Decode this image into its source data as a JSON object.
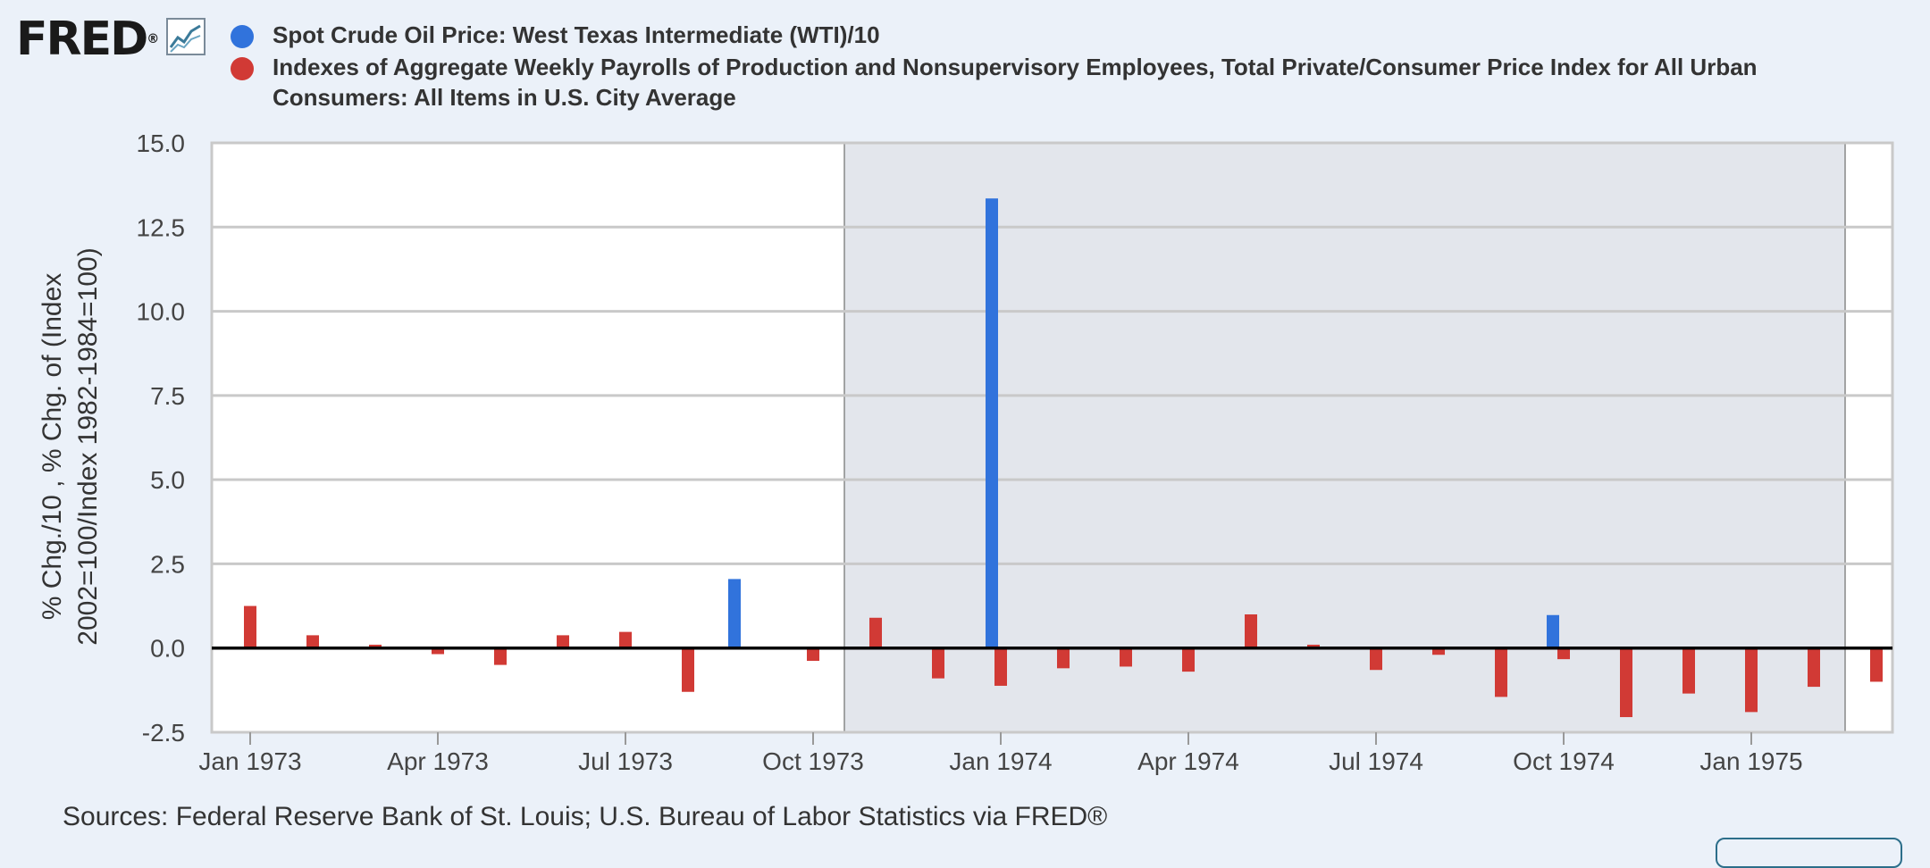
{
  "header": {
    "logo_text": "FRED",
    "logo_mark": "®"
  },
  "legend": [
    {
      "label": "Spot Crude Oil Price: West Texas Intermediate (WTI)/10",
      "color": "#3173dc"
    },
    {
      "label": "Indexes of Aggregate Weekly Payrolls of Production and Nonsupervisory Employees, Total Private/Consumer Price Index for All Urban Consumers: All Items in U.S. City Average",
      "color": "#d13a35"
    }
  ],
  "footer": {
    "sources": "Sources: Federal Reserve Bank of St. Louis; U.S. Bureau of Labor Statistics via FRED®"
  },
  "chart_data": {
    "type": "bar",
    "ylabel_lines": [
      "% Chg./10 , % Chg. of (Index",
      "2002=100/Index 1982-1984=100)"
    ],
    "ylim": [
      -2.5,
      15.0
    ],
    "yticks": [
      "15.0",
      "12.5",
      "10.0",
      "7.5",
      "5.0",
      "2.5",
      "0.0",
      "-2.5"
    ],
    "ytick_values": [
      15.0,
      12.5,
      10.0,
      7.5,
      5.0,
      2.5,
      0.0,
      -2.5
    ],
    "xticks": [
      {
        "label": "Jan 1973",
        "index": 0
      },
      {
        "label": "Apr 1973",
        "index": 3
      },
      {
        "label": "Jul 1973",
        "index": 6
      },
      {
        "label": "Oct 1973",
        "index": 9
      },
      {
        "label": "Jan 1974",
        "index": 12
      },
      {
        "label": "Apr 1974",
        "index": 15
      },
      {
        "label": "Jul 1974",
        "index": 18
      },
      {
        "label": "Oct 1974",
        "index": 21
      },
      {
        "label": "Jan 1975",
        "index": 24
      }
    ],
    "categories": [
      "1973-01",
      "1973-02",
      "1973-03",
      "1973-04",
      "1973-05",
      "1973-06",
      "1973-07",
      "1973-08",
      "1973-09",
      "1973-10",
      "1973-11",
      "1973-12",
      "1974-01",
      "1974-02",
      "1974-03",
      "1974-04",
      "1974-05",
      "1974-06",
      "1974-07",
      "1974-08",
      "1974-09",
      "1974-10",
      "1974-11",
      "1974-12",
      "1975-01",
      "1975-02",
      "1975-03"
    ],
    "series": [
      {
        "color": "#3173dc",
        "values": [
          0,
          0,
          0,
          0,
          0,
          0,
          0,
          2.05,
          0,
          0,
          0,
          0,
          13.35,
          0,
          0,
          0,
          0,
          0,
          0,
          0,
          0,
          0.98,
          0,
          0,
          0,
          0,
          0
        ]
      },
      {
        "color": "#d13a35",
        "values": [
          1.25,
          0.38,
          0.1,
          -0.18,
          -0.5,
          0.38,
          0.48,
          -1.3,
          0,
          -0.38,
          0.9,
          -0.9,
          -1.12,
          -0.6,
          -0.55,
          -0.7,
          1.0,
          0.1,
          -0.65,
          -0.2,
          -1.45,
          -0.33,
          -2.05,
          -1.35,
          -1.9,
          -1.15,
          -1.0
        ]
      }
    ],
    "recession": {
      "start": "1973-11",
      "end": "1975-03"
    },
    "grid": true,
    "legend_position": "top"
  }
}
